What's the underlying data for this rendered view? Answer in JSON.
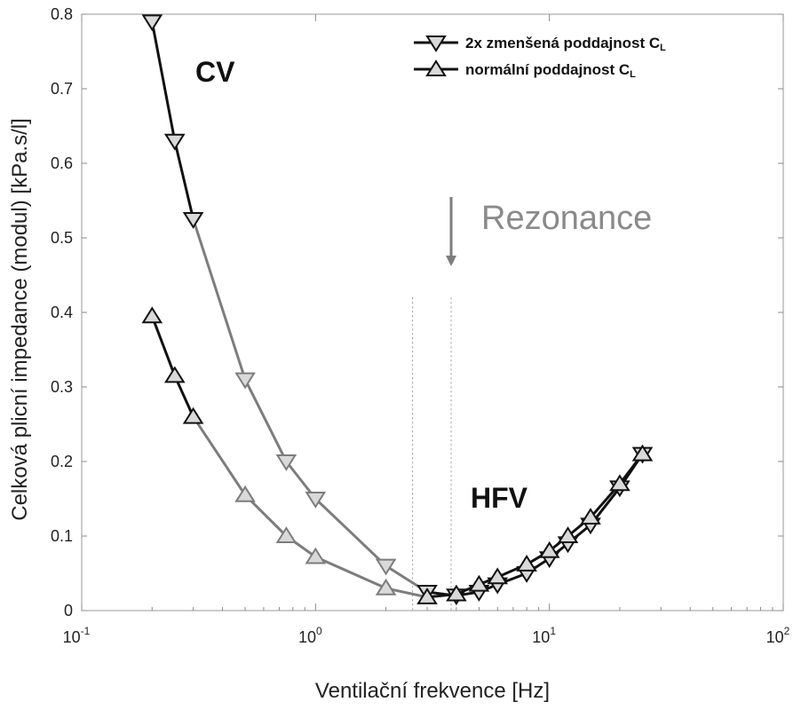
{
  "chart_data": {
    "type": "line",
    "xscale": "log",
    "xlim": [
      0.1,
      100
    ],
    "ylim": [
      0,
      0.8
    ],
    "xlabel": "Ventilační frekvence [Hz]",
    "ylabel": "Celková plicní impedance (modul) [kPa.s/l]",
    "xticks": [
      {
        "base": "10",
        "exp": "-1",
        "value": 0.1
      },
      {
        "base": "10",
        "exp": "0",
        "value": 1
      },
      {
        "base": "10",
        "exp": "1",
        "value": 10
      },
      {
        "base": "10",
        "exp": "2",
        "value": 100
      }
    ],
    "yticks": [
      "0",
      "0.1",
      "0.2",
      "0.3",
      "0.4",
      "0.5",
      "0.6",
      "0.7",
      "0.8"
    ],
    "grid": false,
    "legend_position": "top-right",
    "series": [
      {
        "name": "2x zmenšená poddajnost C",
        "name_sub": "L",
        "marker": "triangle-down",
        "x": [
          0.2,
          0.25,
          0.3,
          0.5,
          0.75,
          1.0,
          2.0,
          3.0,
          4.0,
          5.0,
          6.0,
          8.0,
          10.0,
          12.0,
          15.0,
          20.0,
          25.0
        ],
        "y": [
          0.79,
          0.63,
          0.525,
          0.31,
          0.2,
          0.15,
          0.06,
          0.025,
          0.02,
          0.025,
          0.035,
          0.05,
          0.07,
          0.09,
          0.115,
          0.165,
          0.21
        ]
      },
      {
        "name": "normální poddajnost C",
        "name_sub": "L",
        "marker": "triangle-up",
        "x": [
          0.2,
          0.25,
          0.3,
          0.5,
          0.75,
          1.0,
          2.0,
          3.0,
          4.0,
          5.0,
          6.0,
          8.0,
          10.0,
          12.0,
          15.0,
          20.0,
          25.0
        ],
        "y": [
          0.395,
          0.315,
          0.26,
          0.155,
          0.1,
          0.072,
          0.03,
          0.018,
          0.022,
          0.035,
          0.045,
          0.062,
          0.08,
          0.1,
          0.125,
          0.17,
          0.21
        ]
      }
    ],
    "annotations": {
      "cv": "CV",
      "hfv": "HFV",
      "resonance": "Rezonance",
      "resonance_x": 3.8,
      "boundary_x": 2.6
    },
    "colors": {
      "line_dark": "#111111",
      "line_gray": "#7d7d7d",
      "marker_fill": "#d9d9d9"
    }
  }
}
